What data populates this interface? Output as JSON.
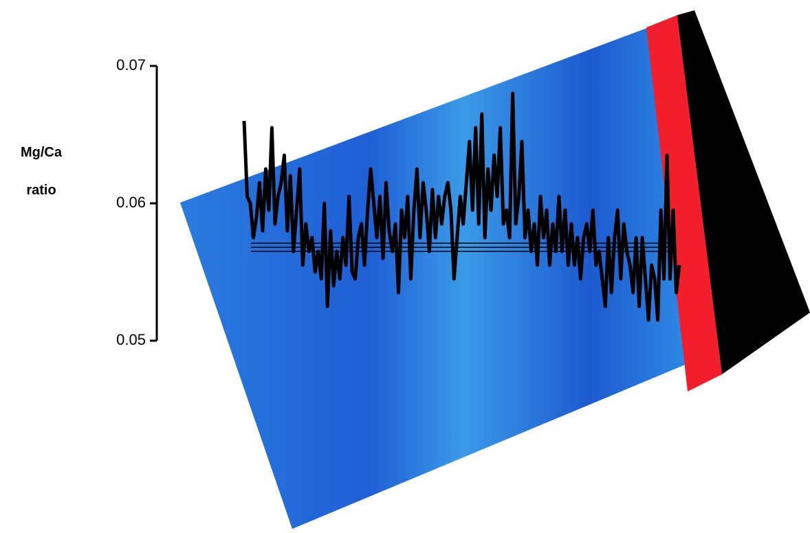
{
  "chart_data": {
    "type": "line",
    "y_label_lines": [
      "Mg/Ca",
      "ratio"
    ],
    "ylim": [
      0.05,
      0.07
    ],
    "yticks": [
      0.05,
      0.06,
      0.07
    ],
    "color": "#000000",
    "reference_lines": [
      0.0571,
      0.0568,
      0.0565
    ],
    "values": [
      0.066,
      0.0605,
      0.06,
      0.0575,
      0.059,
      0.0615,
      0.058,
      0.0625,
      0.0595,
      0.0655,
      0.0585,
      0.0605,
      0.0615,
      0.0635,
      0.058,
      0.062,
      0.0565,
      0.0595,
      0.0625,
      0.0555,
      0.0585,
      0.0565,
      0.0575,
      0.055,
      0.0565,
      0.0545,
      0.06,
      0.0525,
      0.058,
      0.054,
      0.0565,
      0.0545,
      0.0575,
      0.0555,
      0.0605,
      0.055,
      0.0545,
      0.0575,
      0.0585,
      0.0555,
      0.0595,
      0.0625,
      0.06,
      0.0575,
      0.0605,
      0.056,
      0.0615,
      0.058,
      0.0565,
      0.0585,
      0.0535,
      0.0595,
      0.0575,
      0.0605,
      0.0545,
      0.0595,
      0.0625,
      0.0575,
      0.0615,
      0.0595,
      0.0565,
      0.061,
      0.0575,
      0.0605,
      0.0585,
      0.0605,
      0.0615,
      0.0595,
      0.0545,
      0.0575,
      0.0605,
      0.0585,
      0.0615,
      0.0645,
      0.0595,
      0.0655,
      0.0585,
      0.0665,
      0.0575,
      0.0625,
      0.0595,
      0.0635,
      0.0605,
      0.0655,
      0.0585,
      0.0595,
      0.0575,
      0.068,
      0.0585,
      0.0605,
      0.0645,
      0.0575,
      0.0595,
      0.0565,
      0.0585,
      0.0555,
      0.0605,
      0.0575,
      0.0595,
      0.0555,
      0.0585,
      0.0565,
      0.0605,
      0.0565,
      0.0595,
      0.0555,
      0.0585,
      0.0555,
      0.0575,
      0.0545,
      0.0575,
      0.0585,
      0.0565,
      0.0595,
      0.0555,
      0.0565,
      0.0545,
      0.0525,
      0.0575,
      0.0535,
      0.0575,
      0.0595,
      0.0545,
      0.0585,
      0.0565,
      0.0555,
      0.0535,
      0.0575,
      0.0525,
      0.0575,
      0.0545,
      0.0515,
      0.0555,
      0.0545,
      0.0515,
      0.0595,
      0.0545,
      0.0635,
      0.0545,
      0.0595,
      0.0535,
      0.0555
    ]
  }
}
